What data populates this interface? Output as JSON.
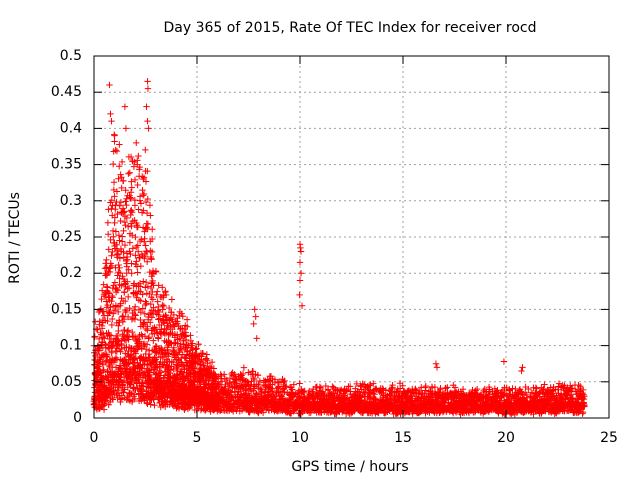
{
  "chart_data": {
    "type": "scatter",
    "title": "Day 365 of 2015, Rate Of TEC Index for receiver rocd",
    "xlabel": "GPS time / hours",
    "ylabel": "ROTI / TECUs",
    "xlim": [
      0,
      25
    ],
    "ylim": [
      0,
      0.5
    ],
    "xticks": [
      0,
      5,
      10,
      15,
      20,
      25
    ],
    "yticks": [
      0,
      0.05,
      0.1,
      0.15,
      0.2,
      0.25,
      0.3,
      0.35,
      0.4,
      0.45,
      0.5
    ],
    "grid": true,
    "marker": "+",
    "color": "#ff0000",
    "series": [
      {
        "name": "ROTI",
        "profile": [
          {
            "x": 0.0,
            "base": 0.02,
            "spread": 0.1
          },
          {
            "x": 0.5,
            "base": 0.03,
            "spread": 0.18
          },
          {
            "x": 1.0,
            "base": 0.05,
            "spread": 0.35
          },
          {
            "x": 1.5,
            "base": 0.06,
            "spread": 0.3
          },
          {
            "x": 2.0,
            "base": 0.06,
            "spread": 0.3
          },
          {
            "x": 2.5,
            "base": 0.05,
            "spread": 0.33
          },
          {
            "x": 3.0,
            "base": 0.04,
            "spread": 0.16
          },
          {
            "x": 4.0,
            "base": 0.03,
            "spread": 0.13
          },
          {
            "x": 5.0,
            "base": 0.03,
            "spread": 0.08
          },
          {
            "x": 6.0,
            "base": 0.02,
            "spread": 0.04
          },
          {
            "x": 7.5,
            "base": 0.02,
            "spread": 0.05
          },
          {
            "x": 10.0,
            "base": 0.015,
            "spread": 0.03
          },
          {
            "x": 15.0,
            "base": 0.015,
            "spread": 0.03
          },
          {
            "x": 20.0,
            "base": 0.015,
            "spread": 0.025
          },
          {
            "x": 23.8,
            "base": 0.015,
            "spread": 0.035
          }
        ],
        "outliers": [
          {
            "x": 0.75,
            "y": 0.46
          },
          {
            "x": 0.8,
            "y": 0.42
          },
          {
            "x": 0.85,
            "y": 0.41
          },
          {
            "x": 1.0,
            "y": 0.39
          },
          {
            "x": 1.05,
            "y": 0.37
          },
          {
            "x": 1.5,
            "y": 0.43
          },
          {
            "x": 1.55,
            "y": 0.4
          },
          {
            "x": 2.05,
            "y": 0.38
          },
          {
            "x": 2.1,
            "y": 0.35
          },
          {
            "x": 2.6,
            "y": 0.465
          },
          {
            "x": 2.62,
            "y": 0.455
          },
          {
            "x": 2.55,
            "y": 0.43
          },
          {
            "x": 2.6,
            "y": 0.41
          },
          {
            "x": 2.65,
            "y": 0.4
          },
          {
            "x": 7.8,
            "y": 0.15
          },
          {
            "x": 7.85,
            "y": 0.14
          },
          {
            "x": 7.75,
            "y": 0.13
          },
          {
            "x": 7.9,
            "y": 0.11
          },
          {
            "x": 10.0,
            "y": 0.24
          },
          {
            "x": 10.02,
            "y": 0.235
          },
          {
            "x": 10.05,
            "y": 0.23
          },
          {
            "x": 10.0,
            "y": 0.215
          },
          {
            "x": 10.05,
            "y": 0.2
          },
          {
            "x": 10.0,
            "y": 0.19
          },
          {
            "x": 9.98,
            "y": 0.17
          },
          {
            "x": 10.1,
            "y": 0.155
          },
          {
            "x": 16.6,
            "y": 0.075
          },
          {
            "x": 16.65,
            "y": 0.07
          },
          {
            "x": 19.9,
            "y": 0.078
          },
          {
            "x": 20.8,
            "y": 0.07
          },
          {
            "x": 20.75,
            "y": 0.065
          }
        ]
      }
    ]
  }
}
